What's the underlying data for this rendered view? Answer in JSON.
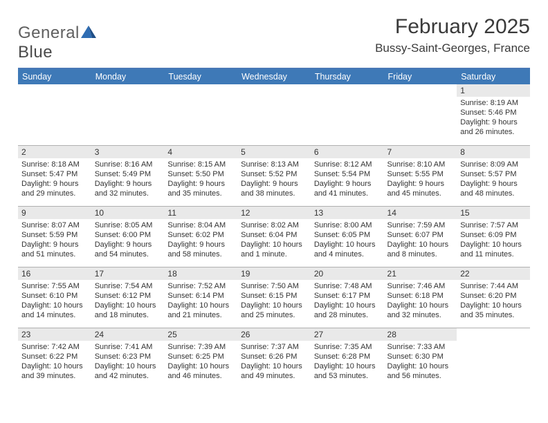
{
  "brand": {
    "name_part1": "General",
    "name_part2": "Blue"
  },
  "title": "February 2025",
  "location": "Bussy-Saint-Georges, France",
  "colors": {
    "header_bg": "#3e79b7",
    "divider": "#4a79b6",
    "daynum_bg": "#e9e9e9",
    "cell_border": "#b0b0b0",
    "logo_shape": "#2f6db3"
  },
  "day_headers": [
    "Sunday",
    "Monday",
    "Tuesday",
    "Wednesday",
    "Thursday",
    "Friday",
    "Saturday"
  ],
  "weeks": [
    [
      null,
      null,
      null,
      null,
      null,
      null,
      {
        "n": "1",
        "sr": "8:19 AM",
        "ss": "5:46 PM",
        "dl": "9 hours and 26 minutes."
      }
    ],
    [
      {
        "n": "2",
        "sr": "8:18 AM",
        "ss": "5:47 PM",
        "dl": "9 hours and 29 minutes."
      },
      {
        "n": "3",
        "sr": "8:16 AM",
        "ss": "5:49 PM",
        "dl": "9 hours and 32 minutes."
      },
      {
        "n": "4",
        "sr": "8:15 AM",
        "ss": "5:50 PM",
        "dl": "9 hours and 35 minutes."
      },
      {
        "n": "5",
        "sr": "8:13 AM",
        "ss": "5:52 PM",
        "dl": "9 hours and 38 minutes."
      },
      {
        "n": "6",
        "sr": "8:12 AM",
        "ss": "5:54 PM",
        "dl": "9 hours and 41 minutes."
      },
      {
        "n": "7",
        "sr": "8:10 AM",
        "ss": "5:55 PM",
        "dl": "9 hours and 45 minutes."
      },
      {
        "n": "8",
        "sr": "8:09 AM",
        "ss": "5:57 PM",
        "dl": "9 hours and 48 minutes."
      }
    ],
    [
      {
        "n": "9",
        "sr": "8:07 AM",
        "ss": "5:59 PM",
        "dl": "9 hours and 51 minutes."
      },
      {
        "n": "10",
        "sr": "8:05 AM",
        "ss": "6:00 PM",
        "dl": "9 hours and 54 minutes."
      },
      {
        "n": "11",
        "sr": "8:04 AM",
        "ss": "6:02 PM",
        "dl": "9 hours and 58 minutes."
      },
      {
        "n": "12",
        "sr": "8:02 AM",
        "ss": "6:04 PM",
        "dl": "10 hours and 1 minute."
      },
      {
        "n": "13",
        "sr": "8:00 AM",
        "ss": "6:05 PM",
        "dl": "10 hours and 4 minutes."
      },
      {
        "n": "14",
        "sr": "7:59 AM",
        "ss": "6:07 PM",
        "dl": "10 hours and 8 minutes."
      },
      {
        "n": "15",
        "sr": "7:57 AM",
        "ss": "6:09 PM",
        "dl": "10 hours and 11 minutes."
      }
    ],
    [
      {
        "n": "16",
        "sr": "7:55 AM",
        "ss": "6:10 PM",
        "dl": "10 hours and 14 minutes."
      },
      {
        "n": "17",
        "sr": "7:54 AM",
        "ss": "6:12 PM",
        "dl": "10 hours and 18 minutes."
      },
      {
        "n": "18",
        "sr": "7:52 AM",
        "ss": "6:14 PM",
        "dl": "10 hours and 21 minutes."
      },
      {
        "n": "19",
        "sr": "7:50 AM",
        "ss": "6:15 PM",
        "dl": "10 hours and 25 minutes."
      },
      {
        "n": "20",
        "sr": "7:48 AM",
        "ss": "6:17 PM",
        "dl": "10 hours and 28 minutes."
      },
      {
        "n": "21",
        "sr": "7:46 AM",
        "ss": "6:18 PM",
        "dl": "10 hours and 32 minutes."
      },
      {
        "n": "22",
        "sr": "7:44 AM",
        "ss": "6:20 PM",
        "dl": "10 hours and 35 minutes."
      }
    ],
    [
      {
        "n": "23",
        "sr": "7:42 AM",
        "ss": "6:22 PM",
        "dl": "10 hours and 39 minutes."
      },
      {
        "n": "24",
        "sr": "7:41 AM",
        "ss": "6:23 PM",
        "dl": "10 hours and 42 minutes."
      },
      {
        "n": "25",
        "sr": "7:39 AM",
        "ss": "6:25 PM",
        "dl": "10 hours and 46 minutes."
      },
      {
        "n": "26",
        "sr": "7:37 AM",
        "ss": "6:26 PM",
        "dl": "10 hours and 49 minutes."
      },
      {
        "n": "27",
        "sr": "7:35 AM",
        "ss": "6:28 PM",
        "dl": "10 hours and 53 minutes."
      },
      {
        "n": "28",
        "sr": "7:33 AM",
        "ss": "6:30 PM",
        "dl": "10 hours and 56 minutes."
      },
      null
    ]
  ],
  "labels": {
    "sunrise": "Sunrise:",
    "sunset": "Sunset:",
    "daylight": "Daylight:"
  }
}
